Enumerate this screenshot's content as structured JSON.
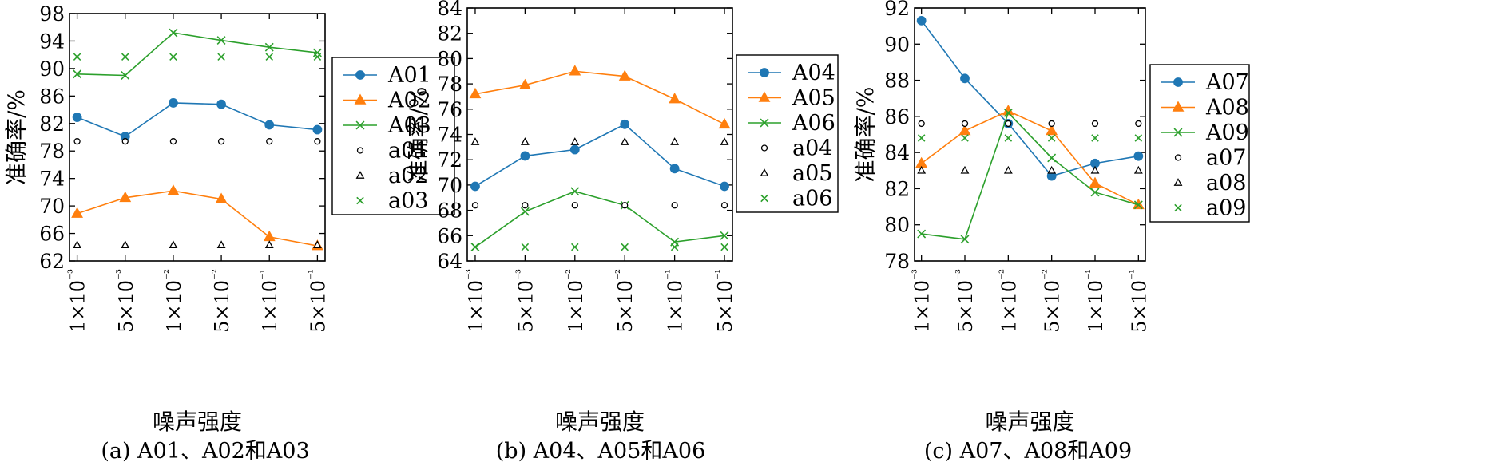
{
  "chart_data": [
    {
      "type": "line",
      "caption": "(a) A01、A02和A03",
      "xlabel": "噪声强度",
      "ylabel": "准确率/%",
      "categories": [
        "1×10⁻³",
        "5×10⁻³",
        "1×10⁻²",
        "5×10⁻²",
        "1×10⁻¹",
        "5×10⁻¹"
      ],
      "ylim": [
        62,
        98
      ],
      "yticks": [
        "62",
        "66",
        "70",
        "74",
        "78",
        "82",
        "86",
        "90",
        "94",
        "98"
      ],
      "series": [
        {
          "name": "A01",
          "values": [
            82.9,
            80.1,
            85.0,
            84.8,
            81.8,
            81.1
          ],
          "color": "#1f77b4",
          "marker": "circle",
          "line": true
        },
        {
          "name": "A02",
          "values": [
            68.9,
            71.2,
            72.2,
            71.0,
            65.5,
            64.2
          ],
          "color": "#ff7f0e",
          "marker": "triangle",
          "line": true
        },
        {
          "name": "A03",
          "values": [
            89.2,
            89.0,
            95.2,
            94.1,
            93.1,
            92.3
          ],
          "color": "#2ca02c",
          "marker": "x",
          "line": true
        },
        {
          "name": "a01",
          "values": [
            79.4,
            79.4,
            79.4,
            79.4,
            79.4,
            79.4
          ],
          "color": "#000000",
          "marker": "circle",
          "line": false
        },
        {
          "name": "a02",
          "values": [
            64.3,
            64.3,
            64.3,
            64.3,
            64.3,
            64.3
          ],
          "color": "#000000",
          "marker": "triangle",
          "line": false
        },
        {
          "name": "a03",
          "values": [
            91.7,
            91.7,
            91.7,
            91.7,
            91.7,
            91.7
          ],
          "color": "#2ca02c",
          "marker": "x",
          "line": false
        }
      ]
    },
    {
      "type": "line",
      "caption": "(b) A04、A05和A06",
      "xlabel": "噪声强度",
      "ylabel": "准确率/%",
      "categories": [
        "1×10⁻³",
        "5×10⁻³",
        "1×10⁻²",
        "5×10⁻²",
        "1×10⁻¹",
        "5×10⁻¹"
      ],
      "ylim": [
        64,
        84
      ],
      "yticks": [
        "64",
        "66",
        "68",
        "70",
        "72",
        "74",
        "76",
        "78",
        "80",
        "82",
        "84"
      ],
      "series": [
        {
          "name": "A04",
          "values": [
            69.9,
            72.3,
            72.8,
            74.8,
            71.3,
            69.9
          ],
          "color": "#1f77b4",
          "marker": "circle",
          "line": true
        },
        {
          "name": "A05",
          "values": [
            77.2,
            77.9,
            79.0,
            78.6,
            76.8,
            74.8
          ],
          "color": "#ff7f0e",
          "marker": "triangle",
          "line": true
        },
        {
          "name": "A06",
          "values": [
            65.1,
            67.9,
            69.5,
            68.4,
            65.5,
            66.0
          ],
          "color": "#2ca02c",
          "marker": "x",
          "line": true
        },
        {
          "name": "a04",
          "values": [
            68.4,
            68.4,
            68.4,
            68.4,
            68.4,
            68.4
          ],
          "color": "#000000",
          "marker": "circle",
          "line": false
        },
        {
          "name": "a05",
          "values": [
            73.4,
            73.4,
            73.4,
            73.4,
            73.4,
            73.4
          ],
          "color": "#000000",
          "marker": "triangle",
          "line": false
        },
        {
          "name": "a06",
          "values": [
            65.1,
            65.1,
            65.1,
            65.1,
            65.1,
            65.1
          ],
          "color": "#2ca02c",
          "marker": "x",
          "line": false
        }
      ]
    },
    {
      "type": "line",
      "caption": "(c) A07、A08和A09",
      "xlabel": "噪声强度",
      "ylabel": "准确率/%",
      "categories": [
        "1×10⁻³",
        "5×10⁻³",
        "1×10⁻²",
        "5×10⁻²",
        "1×10⁻¹",
        "5×10⁻¹"
      ],
      "ylim": [
        78,
        92
      ],
      "yticks": [
        "78",
        "80",
        "82",
        "84",
        "86",
        "88",
        "90",
        "92"
      ],
      "series": [
        {
          "name": "A07",
          "values": [
            91.3,
            88.1,
            85.6,
            82.7,
            83.4,
            83.8
          ],
          "color": "#1f77b4",
          "marker": "circle",
          "line": true
        },
        {
          "name": "A08",
          "values": [
            83.4,
            85.2,
            86.3,
            85.2,
            82.3,
            81.1
          ],
          "color": "#ff7f0e",
          "marker": "triangle",
          "line": true
        },
        {
          "name": "A09",
          "values": [
            79.5,
            79.2,
            86.2,
            83.7,
            81.8,
            81.1
          ],
          "color": "#2ca02c",
          "marker": "x",
          "line": true
        },
        {
          "name": "a07",
          "values": [
            85.6,
            85.6,
            85.6,
            85.6,
            85.6,
            85.6
          ],
          "color": "#000000",
          "marker": "circle",
          "line": false
        },
        {
          "name": "a08",
          "values": [
            83.0,
            83.0,
            83.0,
            83.0,
            83.0,
            83.0
          ],
          "color": "#000000",
          "marker": "triangle",
          "line": false
        },
        {
          "name": "a09",
          "values": [
            84.8,
            84.8,
            84.8,
            84.8,
            84.8,
            84.8
          ],
          "color": "#2ca02c",
          "marker": "x",
          "line": false
        }
      ]
    }
  ]
}
